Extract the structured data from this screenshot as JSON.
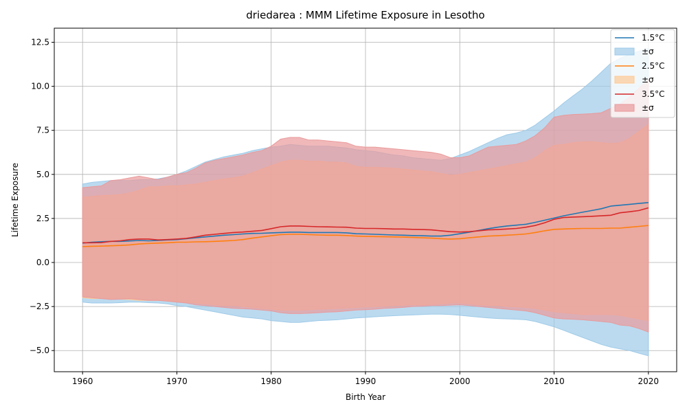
{
  "chart_data": {
    "type": "area",
    "title": "driedarea : MMM Lifetime Exposure in Lesotho",
    "xlabel": "Birth Year",
    "ylabel": "Lifetime Exposure",
    "xlim": [
      1957,
      2023
    ],
    "ylim": [
      -6.2,
      13.3
    ],
    "xticks": [
      1960,
      1970,
      1980,
      1990,
      2000,
      2010,
      2020
    ],
    "yticks": [
      -5.0,
      -2.5,
      0.0,
      2.5,
      5.0,
      7.5,
      10.0,
      12.5
    ],
    "ytick_labels": [
      "−5.0",
      "−2.5",
      "0.0",
      "2.5",
      "5.0",
      "7.5",
      "10.0",
      "12.5"
    ],
    "grid": true,
    "legend_position": "top-right",
    "band_label": "±σ",
    "x": [
      1960,
      1961,
      1962,
      1963,
      1964,
      1965,
      1966,
      1967,
      1968,
      1969,
      1970,
      1971,
      1972,
      1973,
      1974,
      1975,
      1976,
      1977,
      1978,
      1979,
      1980,
      1981,
      1982,
      1983,
      1984,
      1985,
      1986,
      1987,
      1988,
      1989,
      1990,
      1991,
      1992,
      1993,
      1994,
      1995,
      1996,
      1997,
      1998,
      1999,
      2000,
      2001,
      2002,
      2003,
      2004,
      2005,
      2006,
      2007,
      2008,
      2009,
      2010,
      2011,
      2012,
      2013,
      2014,
      2015,
      2016,
      2017,
      2018,
      2019,
      2020
    ],
    "series": [
      {
        "name": "1.5°C",
        "color": "#1f77b4",
        "band_color": "#9ecae8",
        "mean": [
          1.1,
          1.15,
          1.18,
          1.2,
          1.2,
          1.22,
          1.25,
          1.23,
          1.25,
          1.28,
          1.3,
          1.35,
          1.4,
          1.45,
          1.5,
          1.55,
          1.58,
          1.62,
          1.65,
          1.66,
          1.68,
          1.7,
          1.72,
          1.72,
          1.7,
          1.7,
          1.7,
          1.7,
          1.68,
          1.63,
          1.62,
          1.6,
          1.58,
          1.56,
          1.55,
          1.53,
          1.52,
          1.5,
          1.5,
          1.55,
          1.63,
          1.72,
          1.82,
          1.92,
          2.0,
          2.07,
          2.12,
          2.17,
          2.28,
          2.4,
          2.52,
          2.65,
          2.75,
          2.85,
          2.95,
          3.05,
          3.2,
          3.25,
          3.3,
          3.35,
          3.4
        ],
        "upper": [
          4.45,
          4.55,
          4.6,
          4.65,
          4.65,
          4.65,
          4.7,
          4.7,
          4.75,
          4.85,
          5.0,
          5.2,
          5.45,
          5.7,
          5.85,
          6.0,
          6.1,
          6.2,
          6.35,
          6.45,
          6.55,
          6.6,
          6.7,
          6.65,
          6.6,
          6.6,
          6.6,
          6.55,
          6.5,
          6.4,
          6.35,
          6.3,
          6.2,
          6.1,
          6.05,
          5.95,
          5.9,
          5.85,
          5.8,
          5.9,
          6.1,
          6.3,
          6.55,
          6.8,
          7.05,
          7.25,
          7.35,
          7.5,
          7.8,
          8.2,
          8.6,
          9.05,
          9.45,
          9.85,
          10.3,
          10.8,
          11.3,
          11.6,
          11.8,
          12.0,
          12.15
        ],
        "lower": [
          -2.25,
          -2.3,
          -2.3,
          -2.3,
          -2.28,
          -2.25,
          -2.25,
          -2.28,
          -2.3,
          -2.35,
          -2.45,
          -2.5,
          -2.6,
          -2.7,
          -2.8,
          -2.9,
          -3.0,
          -3.1,
          -3.15,
          -3.2,
          -3.3,
          -3.35,
          -3.4,
          -3.4,
          -3.35,
          -3.3,
          -3.28,
          -3.25,
          -3.2,
          -3.15,
          -3.12,
          -3.08,
          -3.05,
          -3.02,
          -3.0,
          -2.98,
          -2.95,
          -2.93,
          -2.93,
          -2.95,
          -3.0,
          -3.05,
          -3.1,
          -3.15,
          -3.18,
          -3.2,
          -3.22,
          -3.25,
          -3.35,
          -3.5,
          -3.65,
          -3.85,
          -4.05,
          -4.25,
          -4.45,
          -4.65,
          -4.8,
          -4.9,
          -5.0,
          -5.15,
          -5.3
        ]
      },
      {
        "name": "2.5°C",
        "color": "#ff7f0e",
        "band_color": "#fdc995",
        "mean": [
          0.9,
          0.92,
          0.93,
          0.95,
          0.97,
          1.0,
          1.05,
          1.08,
          1.1,
          1.12,
          1.15,
          1.15,
          1.17,
          1.18,
          1.2,
          1.22,
          1.25,
          1.3,
          1.38,
          1.45,
          1.52,
          1.58,
          1.6,
          1.6,
          1.58,
          1.56,
          1.55,
          1.55,
          1.53,
          1.5,
          1.48,
          1.47,
          1.46,
          1.45,
          1.44,
          1.42,
          1.4,
          1.38,
          1.35,
          1.33,
          1.35,
          1.4,
          1.45,
          1.5,
          1.52,
          1.55,
          1.58,
          1.62,
          1.7,
          1.8,
          1.88,
          1.9,
          1.92,
          1.93,
          1.93,
          1.93,
          1.95,
          1.95,
          2.0,
          2.05,
          2.1
        ],
        "upper": [
          3.7,
          3.75,
          3.8,
          3.82,
          3.85,
          3.95,
          4.1,
          4.3,
          4.3,
          4.35,
          4.35,
          4.4,
          4.45,
          4.55,
          4.65,
          4.75,
          4.8,
          4.9,
          5.1,
          5.3,
          5.5,
          5.7,
          5.8,
          5.8,
          5.75,
          5.75,
          5.7,
          5.7,
          5.65,
          5.45,
          5.4,
          5.4,
          5.38,
          5.35,
          5.3,
          5.25,
          5.2,
          5.15,
          5.05,
          4.95,
          5.0,
          5.1,
          5.2,
          5.3,
          5.4,
          5.5,
          5.6,
          5.7,
          5.95,
          6.35,
          6.65,
          6.7,
          6.8,
          6.85,
          6.85,
          6.8,
          6.75,
          6.8,
          7.05,
          7.45,
          7.85
        ],
        "lower": [
          -2.0,
          -2.05,
          -2.05,
          -2.05,
          -2.08,
          -2.1,
          -2.15,
          -2.15,
          -2.15,
          -2.18,
          -2.2,
          -2.25,
          -2.3,
          -2.35,
          -2.4,
          -2.45,
          -2.45,
          -2.5,
          -2.55,
          -2.6,
          -2.65,
          -2.7,
          -2.7,
          -2.7,
          -2.68,
          -2.65,
          -2.63,
          -2.6,
          -2.58,
          -2.55,
          -2.52,
          -2.5,
          -2.48,
          -2.45,
          -2.43,
          -2.4,
          -2.4,
          -2.38,
          -2.35,
          -2.3,
          -2.3,
          -2.35,
          -2.4,
          -2.45,
          -2.45,
          -2.5,
          -2.52,
          -2.55,
          -2.6,
          -2.7,
          -2.8,
          -2.85,
          -2.9,
          -2.95,
          -2.95,
          -2.95,
          -2.95,
          -3.0,
          -3.1,
          -3.2,
          -3.3
        ]
      },
      {
        "name": "3.5°C",
        "color": "#d62728",
        "band_color": "#e99a9b",
        "mean": [
          1.12,
          1.12,
          1.13,
          1.2,
          1.23,
          1.3,
          1.33,
          1.33,
          1.28,
          1.3,
          1.33,
          1.37,
          1.45,
          1.55,
          1.6,
          1.65,
          1.7,
          1.73,
          1.77,
          1.82,
          1.92,
          2.03,
          2.07,
          2.07,
          2.05,
          2.03,
          2.02,
          2.01,
          2.0,
          1.95,
          1.93,
          1.93,
          1.92,
          1.9,
          1.9,
          1.88,
          1.87,
          1.85,
          1.8,
          1.75,
          1.73,
          1.75,
          1.8,
          1.85,
          1.87,
          1.9,
          1.93,
          2.0,
          2.1,
          2.25,
          2.45,
          2.55,
          2.58,
          2.6,
          2.62,
          2.65,
          2.68,
          2.82,
          2.88,
          2.95,
          3.1
        ],
        "upper": [
          4.25,
          4.3,
          4.35,
          4.65,
          4.7,
          4.8,
          4.9,
          4.8,
          4.7,
          4.85,
          5.0,
          5.1,
          5.35,
          5.65,
          5.8,
          5.9,
          6.0,
          6.1,
          6.25,
          6.35,
          6.6,
          7.0,
          7.1,
          7.1,
          6.95,
          6.95,
          6.9,
          6.85,
          6.8,
          6.6,
          6.55,
          6.55,
          6.5,
          6.45,
          6.4,
          6.35,
          6.3,
          6.25,
          6.15,
          5.95,
          5.95,
          6.05,
          6.3,
          6.55,
          6.6,
          6.65,
          6.7,
          6.9,
          7.2,
          7.65,
          8.25,
          8.35,
          8.4,
          8.42,
          8.45,
          8.5,
          8.75,
          9.0,
          9.4,
          9.9,
          10.4
        ],
        "lower": [
          -1.95,
          -2.0,
          -2.05,
          -2.1,
          -2.08,
          -2.05,
          -2.1,
          -2.15,
          -2.15,
          -2.2,
          -2.25,
          -2.3,
          -2.4,
          -2.45,
          -2.5,
          -2.55,
          -2.6,
          -2.62,
          -2.65,
          -2.7,
          -2.75,
          -2.85,
          -2.9,
          -2.9,
          -2.88,
          -2.85,
          -2.82,
          -2.8,
          -2.75,
          -2.7,
          -2.68,
          -2.65,
          -2.6,
          -2.58,
          -2.55,
          -2.5,
          -2.48,
          -2.45,
          -2.45,
          -2.42,
          -2.4,
          -2.45,
          -2.5,
          -2.55,
          -2.6,
          -2.65,
          -2.7,
          -2.75,
          -2.85,
          -3.0,
          -3.15,
          -3.2,
          -3.22,
          -3.25,
          -3.3,
          -3.35,
          -3.4,
          -3.55,
          -3.6,
          -3.75,
          -3.95
        ]
      }
    ]
  }
}
